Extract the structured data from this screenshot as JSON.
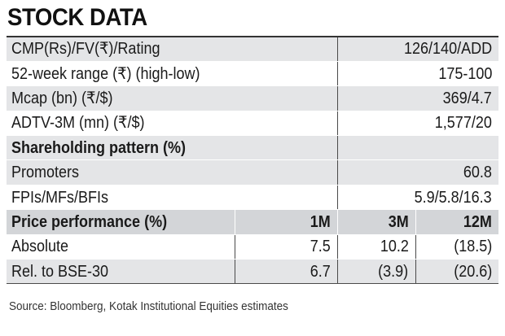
{
  "title": "STOCK DATA",
  "summary_rows": [
    {
      "label": "CMP(Rs)/FV(₹)/Rating",
      "value": "126/140/ADD"
    },
    {
      "label": "52-week range (₹) (high-low)",
      "value": "175-100"
    },
    {
      "label": "Mcap (bn) (₹/$)",
      "value": "369/4.7"
    },
    {
      "label": "ADTV-3M (mn) (₹/$)",
      "value": "1,577/20"
    }
  ],
  "shareholding": {
    "header": "Shareholding pattern (%)",
    "rows": [
      {
        "label": "Promoters",
        "value": "60.8"
      },
      {
        "label": "FPIs/MFs/BFIs",
        "value": "5.9/5.8/16.3"
      }
    ]
  },
  "performance": {
    "header": "Price performance (%)",
    "columns": [
      "1M",
      "3M",
      "12M"
    ],
    "rows": [
      {
        "label": "Absolute",
        "values": [
          "7.5",
          "10.2",
          "(18.5)"
        ]
      },
      {
        "label": "Rel. to BSE-30",
        "values": [
          "6.7",
          "(3.9)",
          "(20.6)"
        ]
      }
    ]
  },
  "source": "Source: Bloomberg, Kotak Institutional Equities estimates",
  "colors": {
    "row_gray": "#e4e5e7",
    "header_gray": "#d3d5d8",
    "rule": "#333333"
  }
}
